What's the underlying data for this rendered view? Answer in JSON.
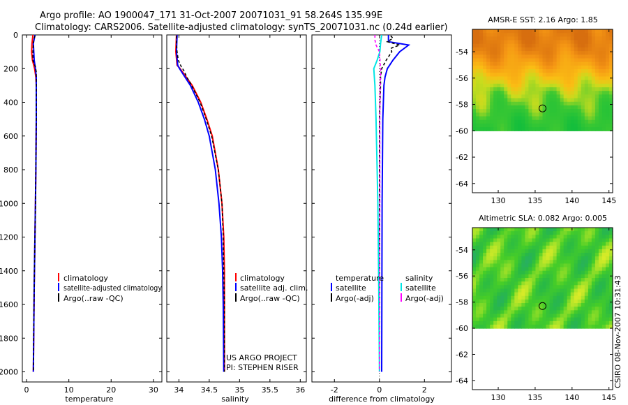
{
  "title_line1": "Argo profile: AO 1900047_171 31-Oct-2007 20071031_91 58.264S 135.99E",
  "title_line2": "Climatology: CARS2006. Satellite-adjusted climatology: synTS_20071031.nc (0.24d earlier)",
  "credit": "CSIRO 08-Nov-2007 10:31:43",
  "colors": {
    "clim": "#ff0000",
    "sat": "#0000ff",
    "argo": "#000000",
    "sal_sat": "#00e5e5",
    "sal_argo": "#ff00ff"
  },
  "chart_data": [
    {
      "id": "temperature",
      "type": "line",
      "xlabel": "temperature",
      "xlim": [
        -1,
        32
      ],
      "ylim": [
        2060,
        0
      ],
      "xticks": [
        0,
        10,
        20,
        30
      ],
      "xtick_labels": [
        "0",
        "10",
        "20",
        "30"
      ],
      "yticks": [
        0,
        200,
        400,
        600,
        800,
        1000,
        1200,
        1400,
        1600,
        1800,
        2000
      ],
      "ytick_labels": [
        "0",
        "200",
        "400",
        "600",
        "800",
        "1000",
        "1200",
        "1400",
        "1600",
        "1800",
        "2000"
      ],
      "legend": {
        "items": [
          "climatology",
          "satellite-adjusted climatology",
          "Argo(..raw -QC)"
        ],
        "placement": "lower-middle"
      },
      "series": [
        {
          "name": "climatology",
          "color_key": "clim",
          "depth": [
            0,
            50,
            100,
            150,
            200,
            250,
            300,
            500,
            800,
            1000,
            1500,
            2000
          ],
          "values": [
            1.5,
            1.3,
            1.2,
            1.4,
            1.9,
            2.2,
            2.3,
            2.3,
            2.2,
            2.1,
            1.8,
            1.6
          ]
        },
        {
          "name": "satellite-adjusted climatology",
          "color_key": "sat",
          "depth": [
            0,
            50,
            100,
            150,
            200,
            250,
            300,
            500,
            800,
            1000,
            1500,
            2000
          ],
          "values": [
            2.0,
            1.6,
            1.7,
            1.8,
            2.1,
            2.3,
            2.3,
            2.3,
            2.2,
            2.1,
            1.8,
            1.6
          ]
        },
        {
          "name": "Argo(..raw -QC)",
          "color_key": "argo",
          "depth": [
            5,
            20,
            50,
            100,
            150,
            190,
            220,
            300,
            500,
            800,
            1000,
            1500,
            2000
          ],
          "values": [
            2.0,
            1.8,
            1.6,
            1.5,
            1.5,
            2.1,
            2.3,
            2.3,
            2.3,
            2.2,
            2.1,
            1.8,
            1.6
          ]
        }
      ]
    },
    {
      "id": "salinity",
      "type": "line",
      "xlabel": "salinity",
      "xlim": [
        33.8,
        36.1
      ],
      "ylim": [
        2060,
        0
      ],
      "xticks": [
        34,
        34.5,
        35,
        35.5,
        36
      ],
      "xtick_labels": [
        "34",
        "34.5",
        "35",
        "35.5",
        "36"
      ],
      "yticks": [
        0,
        200,
        400,
        600,
        800,
        1000,
        1200,
        1400,
        1600,
        1800,
        2000
      ],
      "legend": {
        "items": [
          "climatology",
          "satellite adj. clim.",
          "Argo(..raw -QC)"
        ],
        "placement": "lower-right"
      },
      "annotation": [
        "US ARGO PROJECT",
        "PI: STEPHEN RISER"
      ],
      "series": [
        {
          "name": "climatology",
          "color_key": "clim",
          "depth": [
            0,
            100,
            180,
            200,
            250,
            300,
            400,
            500,
            600,
            800,
            1000,
            1200,
            1400,
            1600,
            2000
          ],
          "values": [
            33.96,
            33.95,
            33.97,
            34.02,
            34.12,
            34.22,
            34.36,
            34.46,
            34.55,
            34.65,
            34.71,
            34.74,
            34.75,
            34.75,
            34.75
          ]
        },
        {
          "name": "satellite adj. clim.",
          "color_key": "sat",
          "depth": [
            0,
            100,
            180,
            200,
            250,
            300,
            400,
            500,
            600,
            800,
            1000,
            1200,
            1400,
            1600,
            2000
          ],
          "values": [
            33.97,
            33.96,
            33.98,
            34.01,
            34.1,
            34.19,
            34.32,
            34.42,
            34.5,
            34.6,
            34.66,
            34.7,
            34.72,
            34.73,
            34.74
          ]
        },
        {
          "name": "Argo(..raw -QC)",
          "color_key": "argo",
          "depth": [
            5,
            50,
            100,
            150,
            190,
            210,
            250,
            300,
            400,
            500,
            600,
            800,
            1000,
            1200,
            1400,
            1600,
            2000
          ],
          "values": [
            33.96,
            33.96,
            33.97,
            33.99,
            34.04,
            34.08,
            34.13,
            34.21,
            34.35,
            34.45,
            34.54,
            34.65,
            34.71,
            34.73,
            34.74,
            34.75,
            34.75
          ]
        }
      ]
    },
    {
      "id": "difference",
      "type": "line",
      "xlabel": "difference from climatology",
      "xlim": [
        -3,
        3.2
      ],
      "ylim": [
        2060,
        0
      ],
      "xticks": [
        -2,
        0,
        2
      ],
      "xtick_labels": [
        "-2",
        "0",
        "2"
      ],
      "yticks": [
        0,
        200,
        400,
        600,
        800,
        1000,
        1200,
        1400,
        1600,
        1800,
        2000
      ],
      "legend": {
        "temp_header": "temperature",
        "sal_header": "salinity",
        "temp_items": [
          "satellite",
          "Argo(-adj)"
        ],
        "sal_items": [
          "satellite",
          "Argo(-adj)"
        ],
        "placement": "lower-middle"
      },
      "series": [
        {
          "name": "temperature satellite",
          "color_key": "sat",
          "depth": [
            0,
            40,
            60,
            100,
            150,
            200,
            250,
            300,
            500,
            1000,
            2000
          ],
          "values": [
            0.4,
            0.4,
            1.3,
            0.9,
            0.6,
            0.35,
            0.25,
            0.2,
            0.15,
            0.12,
            0.1
          ]
        },
        {
          "name": "temperature Argo(-adj)",
          "color_key": "argo",
          "depth": [
            5,
            20,
            40,
            60,
            80,
            100,
            150,
            200,
            250,
            300,
            500,
            1000,
            2000
          ],
          "values": [
            0.5,
            0.6,
            0.35,
            0.9,
            0.5,
            0.55,
            0.3,
            0.1,
            0.05,
            0.05,
            0.0,
            0.0,
            0.0
          ]
        },
        {
          "name": "salinity satellite",
          "color_key": "sal_sat",
          "depth": [
            0,
            50,
            100,
            150,
            200,
            300,
            500,
            800,
            1000,
            1500,
            2000
          ],
          "values": [
            0.1,
            0.05,
            0.02,
            -0.1,
            -0.25,
            -0.2,
            -0.15,
            -0.1,
            -0.07,
            -0.03,
            0.0
          ]
        },
        {
          "name": "salinity Argo(-adj)",
          "color_key": "sal_argo",
          "depth": [
            0,
            30,
            60,
            100,
            200,
            250,
            300,
            500,
            1000,
            1500,
            2000
          ],
          "values": [
            -0.2,
            -0.2,
            -0.15,
            0.0,
            0.05,
            0.05,
            0.03,
            0.02,
            0.02,
            0.0,
            0.0
          ]
        }
      ]
    },
    {
      "id": "sst_map",
      "type": "heatmap",
      "title": "AMSR-E SST: 2.16 Argo: 1.85",
      "xlim": [
        126.5,
        145.5
      ],
      "ylim": [
        -64.7,
        -52.3
      ],
      "xticks": [
        130,
        135,
        140,
        145
      ],
      "xtick_labels": [
        "130",
        "135",
        "140",
        "145"
      ],
      "yticks": [
        -54,
        -56,
        -58,
        -60,
        -62,
        -64
      ],
      "ytick_labels": [
        "-54",
        "-56",
        "-58",
        "-60",
        "-62",
        "-64"
      ],
      "data_lat_range": [
        -60,
        -52.3
      ],
      "lat_values": [
        -53,
        -54,
        -55,
        -56,
        -57,
        -58,
        -59,
        -60
      ],
      "value_by_lat": [
        6.5,
        6.0,
        5.0,
        3.8,
        2.8,
        2.2,
        1.6,
        1.2
      ],
      "marker": {
        "lon": 136.0,
        "lat": -58.3
      }
    },
    {
      "id": "sla_map",
      "type": "heatmap",
      "title": "Altimetric SLA: 0.082 Argo: 0.005",
      "xlim": [
        126.5,
        145.5
      ],
      "ylim": [
        -64.7,
        -52.3
      ],
      "xticks": [
        130,
        135,
        140,
        145
      ],
      "xtick_labels": [
        "130",
        "135",
        "140",
        "145"
      ],
      "yticks": [
        -54,
        -56,
        -58,
        -60,
        -62,
        -64
      ],
      "ytick_labels": [
        "-54",
        "-56",
        "-58",
        "-60",
        "-62",
        "-64"
      ],
      "data_lat_range": [
        -60,
        -52.3
      ],
      "value_range": [
        -0.2,
        0.2
      ],
      "marker": {
        "lon": 136.0,
        "lat": -58.3
      }
    }
  ]
}
